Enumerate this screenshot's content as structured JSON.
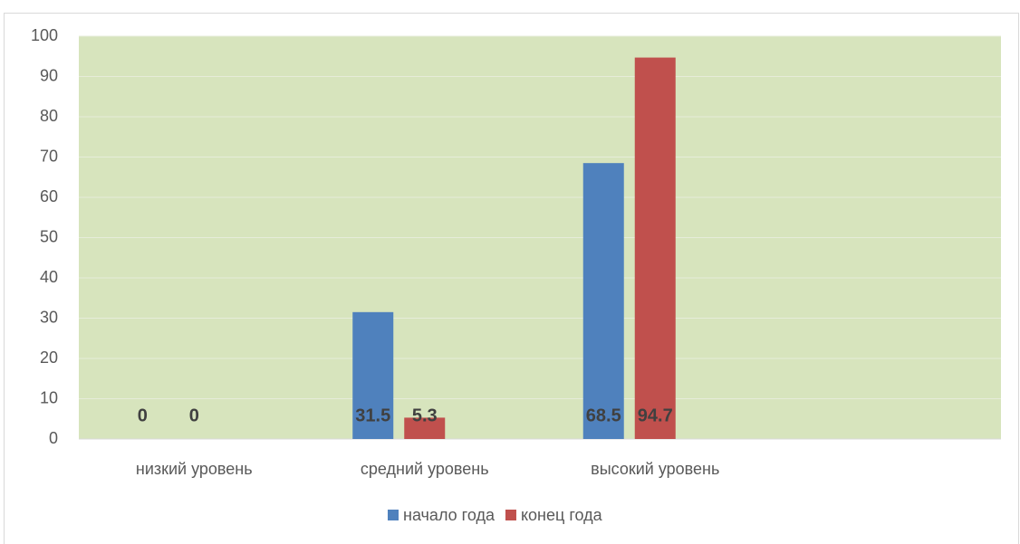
{
  "chart_data": {
    "type": "bar",
    "categories": [
      "низкий уровень",
      "средний уровень",
      "высокий уровень",
      null
    ],
    "series": [
      {
        "name": "начало года",
        "color": "#4f81bd",
        "values": [
          0,
          31.5,
          68.5,
          null
        ]
      },
      {
        "name": "конец года",
        "color": "#c0504d",
        "values": [
          0,
          5.3,
          94.7,
          null
        ]
      }
    ],
    "ylim": [
      0,
      100
    ],
    "yticks": [
      0,
      10,
      20,
      30,
      40,
      50,
      60,
      70,
      80,
      90,
      100
    ],
    "grid": true,
    "legend": "bottom"
  }
}
